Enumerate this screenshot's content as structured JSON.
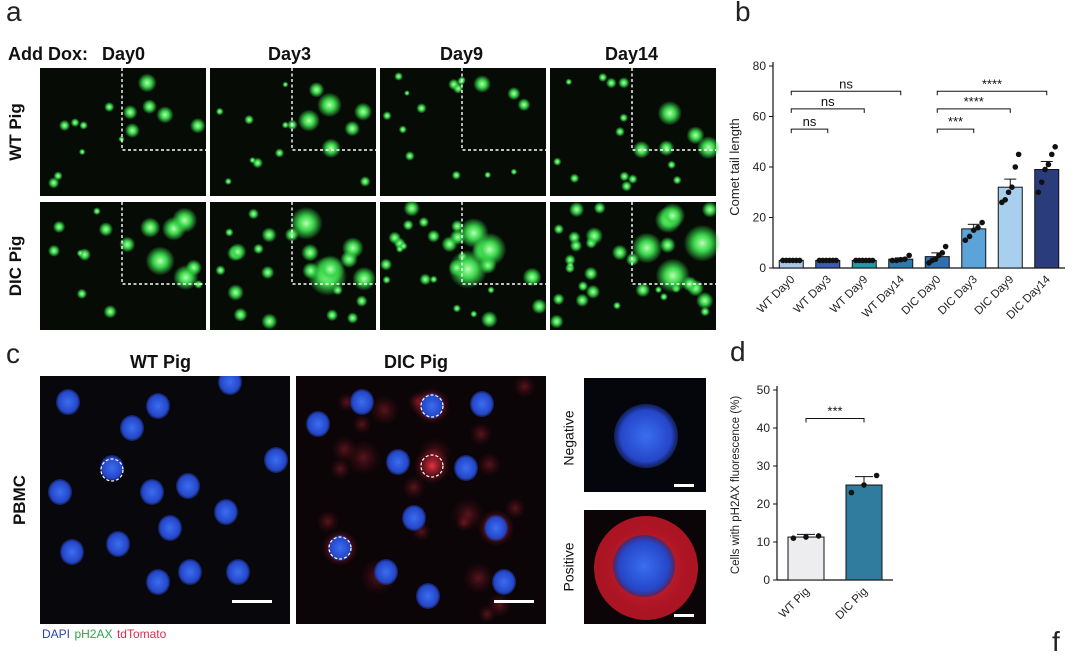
{
  "panels": {
    "a": {
      "letter": "a",
      "add_dox_label": "Add Dox:",
      "days": [
        "Day0",
        "Day3",
        "Day9",
        "Day14"
      ],
      "rows": [
        "WT Pig",
        "DIC Pig"
      ]
    },
    "b": {
      "letter": "b"
    },
    "c": {
      "letter": "c",
      "columns": [
        "WT Pig",
        "DIC Pig"
      ],
      "row_label": "PBMC",
      "insets": [
        "Negative",
        "Positive"
      ],
      "legend": {
        "dapi": "DAPI",
        "ph2ax": "pH2AX",
        "tdtomato": "tdTomato"
      }
    },
    "d": {
      "letter": "d"
    },
    "f": {
      "letter": "f"
    }
  },
  "colors": {
    "comet_green": "#39d64a",
    "dapi_blue": "#2b4fd6",
    "tdtomato_red": "#e0303f",
    "legend_dapi": "#2b3fb0",
    "legend_ph2ax": "#2aa64a",
    "legend_tdtomato": "#d6304a"
  },
  "chart_data": [
    {
      "type": "bar",
      "panel": "b",
      "ylabel": "Comet tail length",
      "ylim": [
        0,
        80
      ],
      "yticks": [
        0,
        20,
        40,
        60,
        80
      ],
      "categories": [
        "WT Day0",
        "WT Day3",
        "WT Day9",
        "WT Day14",
        "DIC Day0",
        "DIC Day3",
        "DIC Day9",
        "DIC Day14"
      ],
      "values": [
        3,
        3,
        3,
        3.5,
        4.5,
        15.5,
        32,
        39
      ],
      "errors": [
        0.3,
        0.3,
        0.3,
        0.5,
        1.5,
        1.8,
        3.2,
        3.2
      ],
      "points": [
        [
          3,
          3,
          3,
          3,
          3,
          3
        ],
        [
          3,
          3,
          3,
          3,
          3,
          3
        ],
        [
          3,
          3,
          3,
          3,
          3,
          3
        ],
        [
          3,
          3,
          3.3,
          3.5,
          5
        ],
        [
          2,
          3,
          3.5,
          5,
          6,
          8.5
        ],
        [
          11,
          12.5,
          15,
          16,
          18
        ],
        [
          26,
          27,
          30,
          32,
          40,
          45
        ],
        [
          30,
          34,
          39,
          41,
          45,
          48
        ]
      ],
      "bar_colors": [
        "#a9c6e8",
        "#3b5bb8",
        "#1f9aa6",
        "#2a7ab0",
        "#2d6fb3",
        "#5ba3d9",
        "#a8cfee",
        "#2b3c7c"
      ],
      "significance": [
        {
          "from": 0,
          "to": 1,
          "y": 55,
          "label": "ns"
        },
        {
          "from": 0,
          "to": 2,
          "y": 63,
          "label": "ns"
        },
        {
          "from": 0,
          "to": 3,
          "y": 70,
          "label": "ns"
        },
        {
          "from": 4,
          "to": 5,
          "y": 55,
          "label": "***"
        },
        {
          "from": 4,
          "to": 6,
          "y": 63,
          "label": "****"
        },
        {
          "from": 4,
          "to": 7,
          "y": 70,
          "label": "****"
        }
      ]
    },
    {
      "type": "bar",
      "panel": "d",
      "ylabel": "Cells with pH2AX fluorescence (%)",
      "ylim": [
        0,
        50
      ],
      "yticks": [
        0,
        10,
        20,
        30,
        40,
        50
      ],
      "categories": [
        "WT Pig",
        "DIC Pig"
      ],
      "values": [
        11.3,
        25
      ],
      "errors": [
        0.7,
        2.2
      ],
      "points": [
        [
          11,
          11.3,
          11.6
        ],
        [
          23,
          25,
          27.5
        ]
      ],
      "bar_colors": [
        "#ededf0",
        "#2f7c9e"
      ],
      "significance": [
        {
          "from": 0,
          "to": 1,
          "y": 42.5,
          "label": "***"
        }
      ]
    }
  ]
}
